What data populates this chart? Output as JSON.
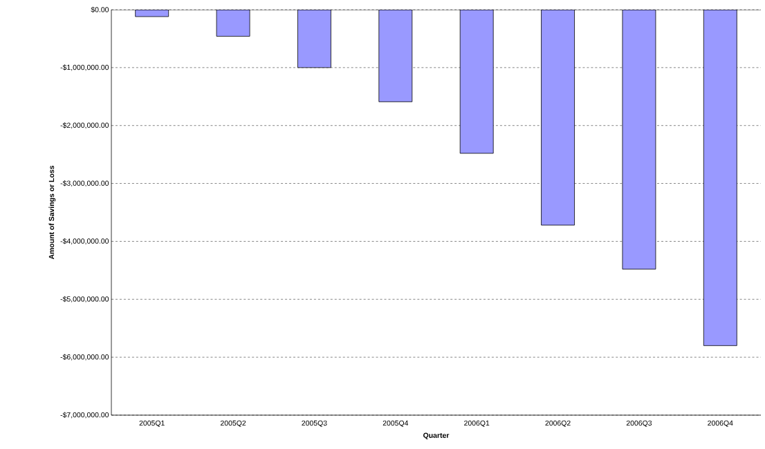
{
  "chart_data": {
    "type": "bar",
    "xlabel": "Quarter",
    "ylabel": "Amount of Savings or Loss",
    "categories": [
      "2005Q1",
      "2005Q2",
      "2005Q3",
      "2005Q4",
      "2006Q1",
      "2006Q2",
      "2006Q3",
      "2006Q4"
    ],
    "values": [
      -120000,
      -460000,
      -1000000,
      -1590000,
      -2480000,
      -3720000,
      -4480000,
      -5800000
    ],
    "color": "#9999ff",
    "ylim": [
      -7000000,
      0
    ],
    "yticks": [
      {
        "value": -7000000,
        "label": "-$7,000,000.00"
      },
      {
        "value": -6000000,
        "label": "-$6,000,000.00"
      },
      {
        "value": -5000000,
        "label": "-$5,000,000.00"
      },
      {
        "value": -4000000,
        "label": "-$4,000,000.00"
      },
      {
        "value": -3000000,
        "label": "-$3,000,000.00"
      },
      {
        "value": -2000000,
        "label": "-$2,000,000.00"
      },
      {
        "value": -1000000,
        "label": "-$1,000,000.00"
      },
      {
        "value": 0,
        "label": "$0.00"
      }
    ],
    "grid": "y"
  }
}
